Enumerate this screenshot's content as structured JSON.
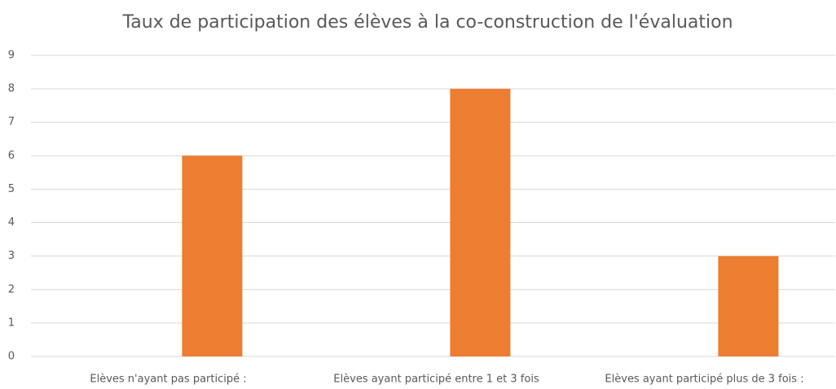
{
  "chart_data": {
    "type": "bar",
    "title": "Taux de participation des élèves à la co-construction de l'évaluation",
    "categories": [
      "Elèves n'ayant pas participé :",
      "Elèves ayant participé entre 1 et 3 fois",
      "Elèves ayant participé plus de 3 fois :"
    ],
    "values": [
      6,
      8,
      3
    ],
    "color": "#ed7d31",
    "ylim": [
      0,
      9
    ],
    "yticks": [
      0,
      1,
      2,
      3,
      4,
      5,
      6,
      7,
      8,
      9
    ],
    "grid": true
  }
}
